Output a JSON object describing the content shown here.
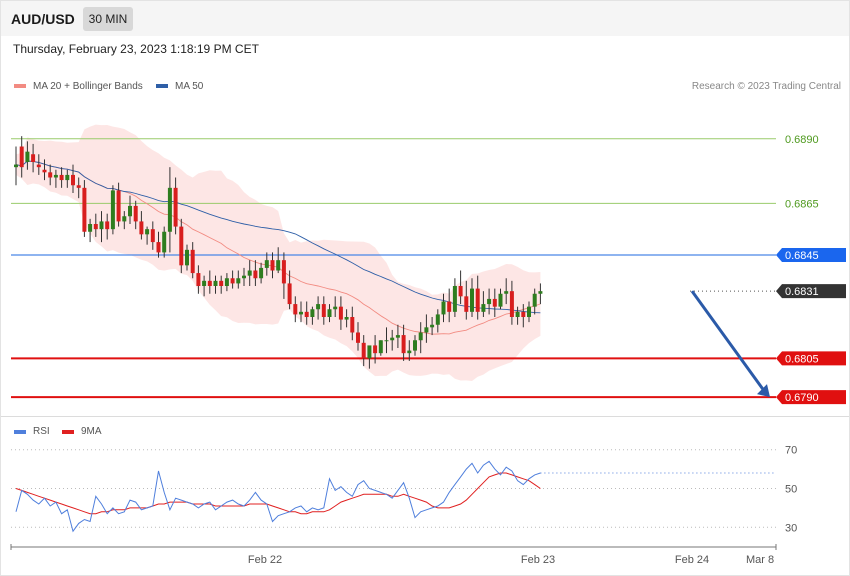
{
  "header": {
    "pair": "AUD/USD",
    "timeframe": "30 MIN"
  },
  "datetime": "Thursday, February 23, 2023 1:18:19 PM CET",
  "legend": {
    "ma20": {
      "label": "MA 20 + Bollinger Bands",
      "color": "#f28b82"
    },
    "ma50": {
      "label": "MA 50",
      "color": "#2f5fa7"
    }
  },
  "credit": "Research © 2023 Trading Central",
  "rsi_legend": {
    "rsi": {
      "label": "RSI",
      "color": "#4f7fdc"
    },
    "ma9": {
      "label": "9MA",
      "color": "#e02020"
    }
  },
  "chart_data": [
    {
      "type": "candlestick",
      "symbol": "AUD/USD",
      "interval": "30 MIN",
      "ylim": [
        0.6785,
        0.6905
      ],
      "levels": [
        {
          "value": 0.689,
          "label": "0.6890",
          "color": "#9acb6b",
          "label_color": "#4f9a1f",
          "style": "thin"
        },
        {
          "value": 0.6865,
          "label": "0.6865",
          "color": "#9acb6b",
          "label_color": "#4f9a1f",
          "style": "thin"
        },
        {
          "value": 0.6845,
          "label": "0.6845",
          "color": "#4a86e8",
          "label_color": "#ffffff",
          "style": "tag",
          "tag_color": "#1a66ee"
        },
        {
          "value": 0.6831,
          "label": "0.6831",
          "color": "#333333",
          "label_color": "#ffffff",
          "style": "current",
          "tag_color": "#333333"
        },
        {
          "value": 0.6805,
          "label": "0.6805",
          "color": "#e01010",
          "label_color": "#ffffff",
          "style": "tag",
          "tag_color": "#e01010"
        },
        {
          "value": 0.679,
          "label": "0.6790",
          "color": "#e01010",
          "label_color": "#ffffff",
          "style": "tag",
          "tag_color": "#e01010"
        }
      ],
      "x_labels": [
        "Feb 22",
        "Feb 23",
        "Feb 24",
        "Mar 8"
      ],
      "projection": {
        "from": 0.6831,
        "to": 0.679,
        "color": "#2b5aa8"
      },
      "candles": [
        [
          0.6879,
          0.6887,
          0.688,
          0.6872
        ],
        [
          0.6887,
          0.6891,
          0.6879,
          0.6875
        ],
        [
          0.6881,
          0.6889,
          0.6885,
          0.6878
        ],
        [
          0.6884,
          0.6888,
          0.6881,
          0.6877
        ],
        [
          0.688,
          0.6884,
          0.6879,
          0.6876
        ],
        [
          0.6878,
          0.6882,
          0.6877,
          0.6874
        ],
        [
          0.6877,
          0.688,
          0.6875,
          0.6872
        ],
        [
          0.6875,
          0.6878,
          0.6876,
          0.6871
        ],
        [
          0.6876,
          0.6879,
          0.6874,
          0.6871
        ],
        [
          0.6874,
          0.6878,
          0.6876,
          0.6871
        ],
        [
          0.6876,
          0.688,
          0.6872,
          0.6869
        ],
        [
          0.6872,
          0.6875,
          0.6871,
          0.6867
        ],
        [
          0.6871,
          0.6874,
          0.6854,
          0.6852
        ],
        [
          0.6854,
          0.6859,
          0.6857,
          0.685
        ],
        [
          0.6857,
          0.6861,
          0.6855,
          0.6852
        ],
        [
          0.6855,
          0.6862,
          0.6858,
          0.685
        ],
        [
          0.6858,
          0.6861,
          0.6855,
          0.6851
        ],
        [
          0.6855,
          0.6872,
          0.687,
          0.6853
        ],
        [
          0.687,
          0.6873,
          0.6858,
          0.6856
        ],
        [
          0.6858,
          0.6862,
          0.686,
          0.6855
        ],
        [
          0.686,
          0.6868,
          0.6864,
          0.6857
        ],
        [
          0.6864,
          0.6866,
          0.6858,
          0.6855
        ],
        [
          0.6858,
          0.6862,
          0.6853,
          0.6851
        ],
        [
          0.6853,
          0.6856,
          0.6855,
          0.6849
        ],
        [
          0.6855,
          0.6858,
          0.685,
          0.6847
        ],
        [
          0.685,
          0.6854,
          0.6846,
          0.6844
        ],
        [
          0.6846,
          0.6856,
          0.6854,
          0.6844
        ],
        [
          0.6854,
          0.6879,
          0.6871,
          0.6846
        ],
        [
          0.6871,
          0.6875,
          0.6856,
          0.6853
        ],
        [
          0.6856,
          0.6859,
          0.6841,
          0.6838
        ],
        [
          0.6841,
          0.6849,
          0.6847,
          0.6839
        ],
        [
          0.6847,
          0.685,
          0.6838,
          0.6836
        ],
        [
          0.6838,
          0.6841,
          0.6833,
          0.683
        ],
        [
          0.6833,
          0.6837,
          0.6835,
          0.6829
        ],
        [
          0.6835,
          0.6839,
          0.6833,
          0.683
        ],
        [
          0.6833,
          0.6837,
          0.6835,
          0.683
        ],
        [
          0.6835,
          0.6837,
          0.6833,
          0.683
        ],
        [
          0.6833,
          0.6838,
          0.6836,
          0.6831
        ],
        [
          0.6836,
          0.6839,
          0.6834,
          0.6832
        ],
        [
          0.6834,
          0.6839,
          0.6836,
          0.6832
        ],
        [
          0.6836,
          0.684,
          0.6837,
          0.6833
        ],
        [
          0.6837,
          0.6843,
          0.6839,
          0.6833
        ],
        [
          0.6839,
          0.6843,
          0.6836,
          0.6833
        ],
        [
          0.6836,
          0.6842,
          0.684,
          0.6834
        ],
        [
          0.684,
          0.6846,
          0.6843,
          0.6837
        ],
        [
          0.6843,
          0.6846,
          0.6839,
          0.6836
        ],
        [
          0.6839,
          0.6848,
          0.6843,
          0.6838
        ],
        [
          0.6843,
          0.6846,
          0.6834,
          0.6828
        ],
        [
          0.6834,
          0.6839,
          0.6826,
          0.6824
        ],
        [
          0.6826,
          0.6829,
          0.6822,
          0.6819
        ],
        [
          0.6822,
          0.6827,
          0.6823,
          0.6819
        ],
        [
          0.6823,
          0.6827,
          0.6821,
          0.6818
        ],
        [
          0.6821,
          0.6825,
          0.6824,
          0.6818
        ],
        [
          0.6824,
          0.6829,
          0.6826,
          0.682
        ],
        [
          0.6826,
          0.6829,
          0.6821,
          0.6818
        ],
        [
          0.6821,
          0.6826,
          0.6824,
          0.6819
        ],
        [
          0.6824,
          0.6829,
          0.6825,
          0.6821
        ],
        [
          0.6825,
          0.6829,
          0.682,
          0.6816
        ],
        [
          0.682,
          0.6824,
          0.6821,
          0.6817
        ],
        [
          0.6821,
          0.6825,
          0.6815,
          0.6812
        ],
        [
          0.6815,
          0.6819,
          0.6811,
          0.6808
        ],
        [
          0.6811,
          0.6814,
          0.6805,
          0.6802
        ],
        [
          0.6805,
          0.6809,
          0.681,
          0.6801
        ],
        [
          0.681,
          0.6814,
          0.6807,
          0.6803
        ],
        [
          0.6807,
          0.6812,
          0.6812,
          0.6806
        ],
        [
          0.6812,
          0.6817,
          0.6812,
          0.6807
        ],
        [
          0.6812,
          0.6816,
          0.6813,
          0.6808
        ],
        [
          0.6813,
          0.6818,
          0.6814,
          0.6809
        ],
        [
          0.6814,
          0.6818,
          0.6807,
          0.6804
        ],
        [
          0.6807,
          0.6812,
          0.6808,
          0.6804
        ],
        [
          0.6808,
          0.6814,
          0.6812,
          0.6806
        ],
        [
          0.6812,
          0.6819,
          0.6815,
          0.6807
        ],
        [
          0.6815,
          0.6822,
          0.6817,
          0.6811
        ],
        [
          0.6817,
          0.6821,
          0.6818,
          0.6814
        ],
        [
          0.6818,
          0.6824,
          0.6822,
          0.6815
        ],
        [
          0.6822,
          0.683,
          0.6827,
          0.6819
        ],
        [
          0.6827,
          0.6832,
          0.6823,
          0.6819
        ],
        [
          0.6823,
          0.6836,
          0.6833,
          0.6821
        ],
        [
          0.6833,
          0.6839,
          0.6829,
          0.6826
        ],
        [
          0.6829,
          0.6835,
          0.6823,
          0.682
        ],
        [
          0.6823,
          0.6836,
          0.6832,
          0.6821
        ],
        [
          0.6832,
          0.6837,
          0.6823,
          0.682
        ],
        [
          0.6823,
          0.6831,
          0.6826,
          0.6821
        ],
        [
          0.6826,
          0.6832,
          0.6828,
          0.6822
        ],
        [
          0.6828,
          0.6832,
          0.6825,
          0.6821
        ],
        [
          0.6825,
          0.6832,
          0.683,
          0.6824
        ],
        [
          0.683,
          0.6836,
          0.6831,
          0.6826
        ],
        [
          0.6831,
          0.6835,
          0.6821,
          0.6818
        ],
        [
          0.6821,
          0.6825,
          0.6823,
          0.6818
        ],
        [
          0.6823,
          0.6826,
          0.6821,
          0.6817
        ],
        [
          0.6821,
          0.6827,
          0.6825,
          0.6819
        ],
        [
          0.6825,
          0.6832,
          0.683,
          0.6822
        ],
        [
          0.683,
          0.6834,
          0.6831,
          0.6826
        ]
      ]
    },
    {
      "type": "line",
      "title": "RSI",
      "ylim": [
        25,
        75
      ],
      "y_ticks": [
        30,
        50,
        70
      ],
      "series": [
        {
          "name": "RSI",
          "color": "#4f7fdc",
          "values": [
            38,
            49,
            47,
            44,
            42,
            45,
            41,
            43,
            37,
            39,
            28,
            32,
            34,
            33,
            46,
            42,
            37,
            40,
            37,
            38,
            44,
            43,
            39,
            40,
            41,
            59,
            48,
            39,
            45,
            44,
            43,
            42,
            40,
            42,
            43,
            39,
            41,
            43,
            44,
            42,
            41,
            44,
            48,
            44,
            42,
            33,
            36,
            37,
            38,
            40,
            41,
            38,
            40,
            39,
            40,
            55,
            49,
            51,
            48,
            46,
            52,
            54,
            50,
            49,
            48,
            47,
            45,
            49,
            53,
            45,
            35,
            38,
            39,
            40,
            41,
            43,
            48,
            52,
            56,
            60,
            63,
            58,
            62,
            64,
            60,
            57,
            61,
            59,
            54,
            52,
            55,
            57,
            58
          ]
        },
        {
          "name": "9MA",
          "color": "#e02020",
          "values": [
            50,
            49,
            48,
            47,
            46,
            45,
            44,
            43,
            42,
            41,
            40,
            39,
            38,
            37,
            37,
            38,
            38,
            39,
            39,
            39,
            40,
            40,
            40,
            40,
            41,
            42,
            42,
            43,
            43,
            43,
            43,
            42,
            42,
            42,
            42,
            41,
            41,
            41,
            41,
            41,
            41,
            42,
            42,
            42,
            42,
            41,
            40,
            39,
            38,
            38,
            37,
            37,
            38,
            38,
            38,
            39,
            41,
            43,
            44,
            45,
            46,
            47,
            47,
            47,
            47,
            47,
            46,
            46,
            47,
            46,
            45,
            44,
            43,
            41,
            40,
            40,
            40,
            41,
            42,
            44,
            47,
            50,
            53,
            56,
            57,
            58,
            58,
            57,
            56,
            55,
            54,
            52,
            50
          ]
        }
      ]
    }
  ]
}
